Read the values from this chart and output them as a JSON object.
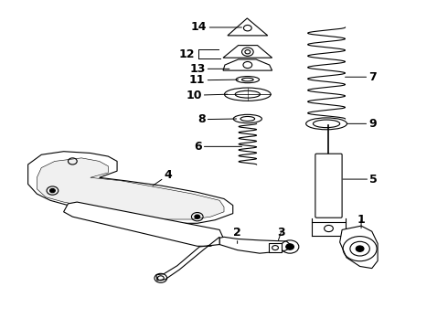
{
  "bg_color": "#ffffff",
  "line_color": "#000000",
  "fig_width": 4.9,
  "fig_height": 3.6,
  "dpi": 100,
  "label_fontsize": 9,
  "label_fontweight": "bold"
}
